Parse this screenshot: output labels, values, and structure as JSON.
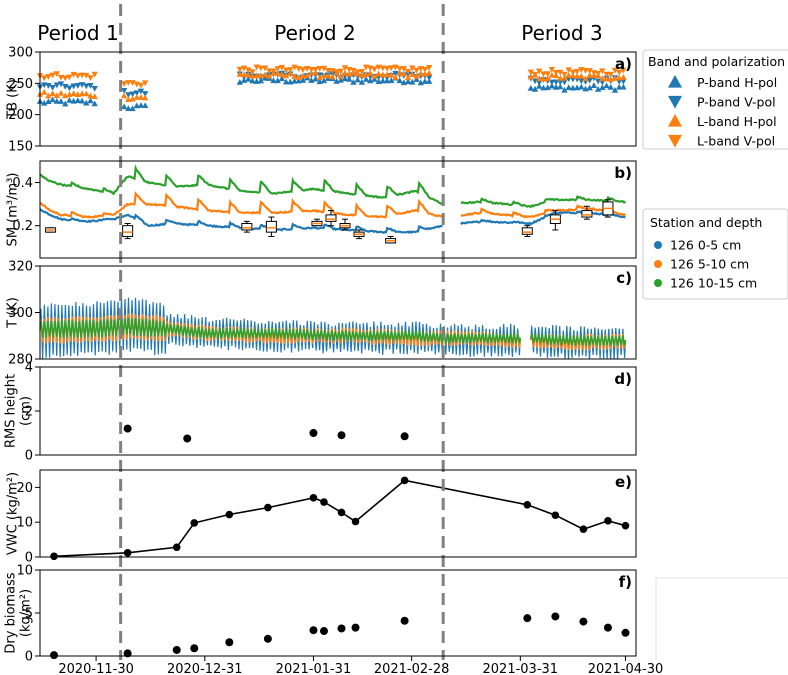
{
  "periods": [
    "Period 1",
    "Period 2",
    "Period 3"
  ],
  "x_tick_labels": [
    "2020-11-30",
    "2020-12-31",
    "2021-01-31",
    "2021-02-28",
    "2021-03-31",
    "2021-04-30"
  ],
  "colors": {
    "blue": "#1f77b4",
    "orange": "#ff7f0e",
    "green": "#2ca02c",
    "divider": "#808080",
    "black": "#000000"
  },
  "legend_tb": {
    "title": "Band and polarization",
    "items": [
      {
        "label": "P-band H-pol",
        "color": "#1f77b4",
        "marker": "triangle-up"
      },
      {
        "label": "P-band V-pol",
        "color": "#1f77b4",
        "marker": "triangle-down"
      },
      {
        "label": "L-band H-pol",
        "color": "#ff7f0e",
        "marker": "triangle-up"
      },
      {
        "label": "L-band V-pol",
        "color": "#ff7f0e",
        "marker": "triangle-down"
      }
    ]
  },
  "legend_station": {
    "title": "Station and depth",
    "items": [
      {
        "label": "126 0-5 cm",
        "color": "#1f77b4"
      },
      {
        "label": "126 5-10 cm",
        "color": "#ff7f0e"
      },
      {
        "label": "126 10-15 cm",
        "color": "#2ca02c"
      }
    ]
  },
  "chart_data": [
    {
      "panel": "a)",
      "type": "scatter",
      "ylabel": "TB (K)",
      "ylim": [
        150,
        300
      ],
      "yticks": [
        150,
        200,
        250,
        300
      ],
      "x_axis": "date",
      "gaps_without_data": [
        [
          "2020-12-01",
          "2020-12-06"
        ],
        [
          "2020-12-16",
          "2021-01-10"
        ],
        [
          "2021-03-09",
          "2021-04-03"
        ]
      ],
      "series": [
        {
          "name": "P-band H-pol",
          "approx_level_K": [
            [
              "2020-11-14",
              "2020-11-30",
              220
            ],
            [
              "2020-12-08",
              "2020-12-15",
              212
            ],
            [
              "2021-01-10",
              "2021-03-06",
              255
            ],
            [
              "2021-04-03",
              "2021-04-30",
              243
            ]
          ]
        },
        {
          "name": "P-band V-pol",
          "approx_level_K": [
            [
              "2020-11-14",
              "2020-11-30",
              245
            ],
            [
              "2020-12-08",
              "2020-12-15",
              235
            ],
            [
              "2021-01-10",
              "2021-03-06",
              262
            ],
            [
              "2021-04-03",
              "2021-04-30",
              255
            ]
          ]
        },
        {
          "name": "L-band H-pol",
          "approx_level_K": [
            [
              "2020-11-14",
              "2020-11-30",
              232
            ],
            [
              "2020-12-08",
              "2020-12-15",
              228
            ],
            [
              "2021-01-10",
              "2021-03-06",
              263
            ],
            [
              "2021-04-03",
              "2021-04-30",
              260
            ]
          ]
        },
        {
          "name": "L-band V-pol",
          "approx_level_K": [
            [
              "2020-11-14",
              "2020-11-30",
              262
            ],
            [
              "2020-12-08",
              "2020-12-15",
              250
            ],
            [
              "2021-01-10",
              "2021-03-06",
              272
            ],
            [
              "2021-04-03",
              "2021-04-30",
              268
            ]
          ]
        }
      ]
    },
    {
      "panel": "b)",
      "type": "line",
      "ylabel": "SM (m³/m³)",
      "ylim": [
        0.05,
        0.5
      ],
      "yticks": [
        0.2,
        0.4
      ],
      "series": [
        {
          "name": "126 0-5 cm",
          "x": [
            "2020-11-14",
            "2020-11-20",
            "2020-11-28",
            "2020-12-05",
            "2020-12-09",
            "2020-12-15",
            "2020-12-22",
            "2021-01-01",
            "2021-01-10",
            "2021-01-20",
            "2021-01-31",
            "2021-02-10",
            "2021-02-20",
            "2021-03-01",
            "2021-03-09",
            "2021-03-20",
            "2021-04-03",
            "2021-04-10",
            "2021-04-20",
            "2021-04-30"
          ],
          "y": [
            0.27,
            0.23,
            0.22,
            0.23,
            0.25,
            0.2,
            0.21,
            0.2,
            0.19,
            0.18,
            0.19,
            0.18,
            0.17,
            0.17,
            0.2,
            0.22,
            0.21,
            0.26,
            0.26,
            0.24
          ]
        },
        {
          "name": "126 5-10 cm",
          "x": [
            "2020-11-14",
            "2020-11-20",
            "2020-11-28",
            "2020-12-05",
            "2020-12-09",
            "2020-12-15",
            "2020-12-22",
            "2021-01-01",
            "2021-01-10",
            "2021-01-20",
            "2021-01-31",
            "2021-02-10",
            "2021-02-20",
            "2021-03-01",
            "2021-03-09",
            "2021-03-20",
            "2021-04-03",
            "2021-04-10",
            "2021-04-20",
            "2021-04-30"
          ],
          "y": [
            0.29,
            0.25,
            0.24,
            0.25,
            0.3,
            0.3,
            0.29,
            0.27,
            0.26,
            0.26,
            0.27,
            0.25,
            0.24,
            0.27,
            0.24,
            0.26,
            0.24,
            0.27,
            0.28,
            0.25
          ]
        },
        {
          "name": "126 10-15 cm",
          "x": [
            "2020-11-14",
            "2020-11-20",
            "2020-11-28",
            "2020-12-05",
            "2020-12-09",
            "2020-12-15",
            "2020-12-22",
            "2021-01-01",
            "2021-01-10",
            "2021-01-20",
            "2021-01-31",
            "2021-02-10",
            "2021-02-20",
            "2021-03-01",
            "2021-03-09",
            "2021-03-20",
            "2021-04-03",
            "2021-04-10",
            "2021-04-20",
            "2021-04-30"
          ],
          "y": [
            0.42,
            0.39,
            0.37,
            0.35,
            0.43,
            0.4,
            0.38,
            0.39,
            0.36,
            0.35,
            0.37,
            0.35,
            0.33,
            0.36,
            0.3,
            0.31,
            0.29,
            0.32,
            0.32,
            0.31
          ]
        }
      ],
      "boxplots": [
        {
          "x": "2020-11-17",
          "median": 0.18,
          "q1": 0.17,
          "q3": 0.19,
          "min": 0.17,
          "max": 0.19
        },
        {
          "x": "2020-12-09",
          "median": 0.17,
          "q1": 0.15,
          "q3": 0.2,
          "min": 0.14,
          "max": 0.21
        },
        {
          "x": "2021-01-12",
          "median": 0.19,
          "q1": 0.18,
          "q3": 0.21,
          "min": 0.17,
          "max": 0.22
        },
        {
          "x": "2021-01-19",
          "median": 0.19,
          "q1": 0.17,
          "q3": 0.22,
          "min": 0.15,
          "max": 0.24
        },
        {
          "x": "2021-02-01",
          "median": 0.21,
          "q1": 0.2,
          "q3": 0.22,
          "min": 0.2,
          "max": 0.23
        },
        {
          "x": "2021-02-05",
          "median": 0.23,
          "q1": 0.22,
          "q3": 0.25,
          "min": 0.2,
          "max": 0.27
        },
        {
          "x": "2021-02-09",
          "median": 0.2,
          "q1": 0.19,
          "q3": 0.21,
          "min": 0.18,
          "max": 0.23
        },
        {
          "x": "2021-02-13",
          "median": 0.16,
          "q1": 0.15,
          "q3": 0.17,
          "min": 0.14,
          "max": 0.18
        },
        {
          "x": "2021-02-22",
          "median": 0.13,
          "q1": 0.12,
          "q3": 0.14,
          "min": 0.12,
          "max": 0.15
        },
        {
          "x": "2021-04-02",
          "median": 0.17,
          "q1": 0.16,
          "q3": 0.19,
          "min": 0.15,
          "max": 0.2
        },
        {
          "x": "2021-04-10",
          "median": 0.23,
          "q1": 0.21,
          "q3": 0.25,
          "min": 0.18,
          "max": 0.27
        },
        {
          "x": "2021-04-19",
          "median": 0.25,
          "q1": 0.24,
          "q3": 0.27,
          "min": 0.23,
          "max": 0.29
        },
        {
          "x": "2021-04-25",
          "median": 0.28,
          "q1": 0.25,
          "q3": 0.31,
          "min": 0.24,
          "max": 0.32
        }
      ]
    },
    {
      "panel": "c)",
      "type": "line",
      "ylabel": "T (K)",
      "ylim": [
        280,
        320
      ],
      "yticks": [
        280,
        300,
        320
      ],
      "series": [
        {
          "name": "126 0-5 cm",
          "x": [
            "2020-11-14",
            "2020-12-01",
            "2020-12-09",
            "2020-12-20",
            "2021-01-01",
            "2021-01-20",
            "2021-02-10",
            "2021-03-01",
            "2021-03-10",
            "2021-04-01",
            "2021-04-15",
            "2021-04-30"
          ],
          "y": [
            292,
            293,
            295,
            293,
            291,
            290,
            289,
            289,
            288,
            288,
            287,
            287
          ]
        },
        {
          "name": "126 5-10 cm",
          "x": [
            "2020-11-14",
            "2020-12-01",
            "2020-12-09",
            "2020-12-20",
            "2021-01-01",
            "2021-01-20",
            "2021-02-10",
            "2021-03-01",
            "2021-03-10",
            "2021-04-01",
            "2021-04-15",
            "2021-04-30"
          ],
          "y": [
            292,
            293,
            294,
            293,
            291,
            290,
            290,
            289,
            289,
            288,
            287,
            288
          ]
        },
        {
          "name": "126 10-15 cm",
          "x": [
            "2020-11-14",
            "2020-12-01",
            "2020-12-09",
            "2020-12-20",
            "2021-01-01",
            "2021-01-20",
            "2021-02-10",
            "2021-03-01",
            "2021-03-10",
            "2021-04-01",
            "2021-04-15",
            "2021-04-30"
          ],
          "y": [
            293,
            293,
            294,
            293,
            291,
            291,
            290,
            290,
            289,
            289,
            288,
            288
          ]
        }
      ]
    },
    {
      "panel": "d)",
      "type": "scatter",
      "ylabel": "RMS height\n(cm)",
      "ylim": [
        0,
        4
      ],
      "yticks": [
        0,
        2,
        4
      ],
      "x": [
        "2020-12-09",
        "2020-12-26",
        "2021-01-31",
        "2021-02-08",
        "2021-02-26"
      ],
      "y": [
        1.2,
        0.75,
        1.0,
        0.9,
        0.85
      ]
    },
    {
      "panel": "e)",
      "type": "line",
      "ylabel": "VWC (kg/m²)",
      "ylim": [
        0,
        25
      ],
      "yticks": [
        0,
        10,
        20
      ],
      "x": [
        "2020-11-18",
        "2020-12-09",
        "2020-12-23",
        "2020-12-28",
        "2021-01-07",
        "2021-01-18",
        "2021-01-31",
        "2021-02-03",
        "2021-02-08",
        "2021-02-12",
        "2021-02-26",
        "2021-04-02",
        "2021-04-10",
        "2021-04-18",
        "2021-04-25",
        "2021-04-30"
      ],
      "y": [
        0.2,
        1.2,
        2.8,
        9.8,
        12.2,
        14.2,
        17.0,
        15.8,
        12.8,
        10.2,
        22.0,
        15.0,
        12.0,
        8.0,
        10.4,
        9.0
      ]
    },
    {
      "panel": "f)",
      "type": "scatter",
      "ylabel": "Dry biomass\n(kg/m²)",
      "ylim": [
        0,
        10
      ],
      "yticks": [
        0,
        5,
        10
      ],
      "x": [
        "2020-11-18",
        "2020-12-09",
        "2020-12-23",
        "2020-12-28",
        "2021-01-07",
        "2021-01-18",
        "2021-01-31",
        "2021-02-03",
        "2021-02-08",
        "2021-02-12",
        "2021-02-26",
        "2021-04-02",
        "2021-04-10",
        "2021-04-18",
        "2021-04-25",
        "2021-04-30"
      ],
      "y": [
        0.1,
        0.3,
        0.7,
        0.9,
        1.6,
        2.0,
        3.0,
        2.9,
        3.2,
        3.3,
        4.1,
        4.4,
        4.6,
        4.0,
        3.3,
        2.7
      ]
    }
  ]
}
